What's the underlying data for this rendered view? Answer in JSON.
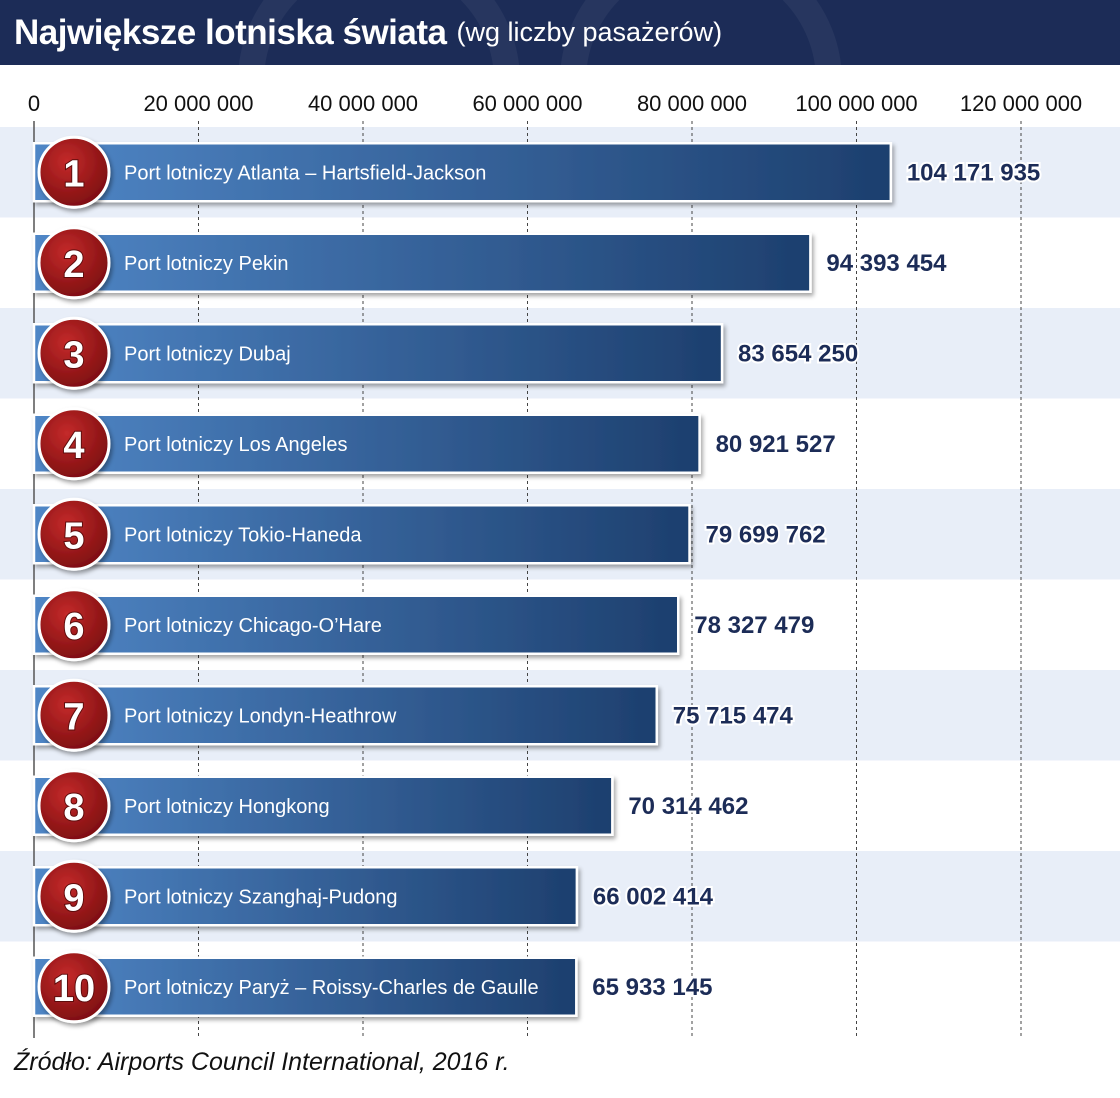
{
  "header": {
    "title": "Największe lotniska świata",
    "subtitle": "(wg liczby pasażerów)"
  },
  "source": "Źródło: Airports Council International, 2016 r.",
  "colors": {
    "header_bg": "#1c2c57",
    "band": "#e8eef8",
    "bar_light": "#4f86c6",
    "bar_dark": "#1d3f6e",
    "rank_badge": "#a8171b",
    "value_text": "#1c2c57"
  },
  "chart_data": {
    "type": "bar",
    "orientation": "horizontal",
    "title": "Największe lotniska świata (wg liczby pasażerów)",
    "categories": [
      "Port lotniczy Atlanta – Hartsfield-Jackson",
      "Port lotniczy Pekin",
      "Port lotniczy Dubaj",
      "Port lotniczy Los Angeles",
      "Port lotniczy Tokio-Haneda",
      "Port lotniczy Chicago-O’Hare",
      "Port lotniczy Londyn-Heathrow",
      "Port lotniczy Hongkong",
      "Port lotniczy Szanghaj-Pudong",
      "Port lotniczy Paryż – Roissy-Charles de Gaulle"
    ],
    "ranks": [
      "1",
      "2",
      "3",
      "4",
      "5",
      "6",
      "7",
      "8",
      "9",
      "10"
    ],
    "values": [
      104171935,
      94393454,
      83654250,
      80921527,
      79699762,
      78327479,
      75715474,
      70314462,
      66002414,
      65933145
    ],
    "value_labels": [
      "104 171 935",
      "94 393 454",
      "83 654 250",
      "80 921 527",
      "79 699 762",
      "78 327 479",
      "75 715 474",
      "70 314 462",
      "66 002 414",
      "65 933 145"
    ],
    "x_ticks": [
      0,
      20000000,
      40000000,
      60000000,
      80000000,
      100000000,
      120000000
    ],
    "x_tick_labels": [
      "0",
      "20 000 000",
      "40 000 000",
      "60 000 000",
      "80 000 000",
      "100 000 000",
      "120 000 000"
    ],
    "xlim": [
      0,
      120000000
    ],
    "xlabel": "",
    "ylabel": "",
    "grid": "vertical dashed",
    "legend": "none"
  }
}
